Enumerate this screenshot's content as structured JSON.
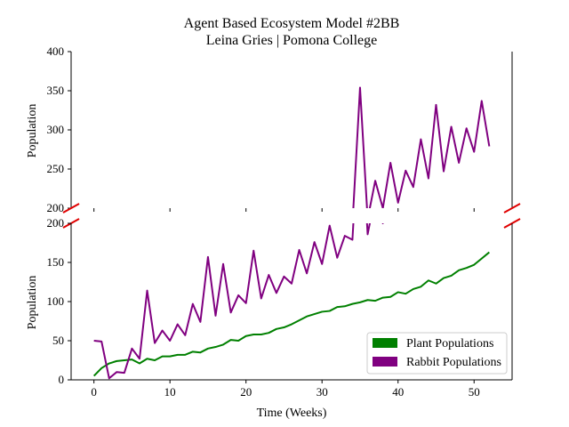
{
  "chart_data": {
    "type": "line",
    "title": "Agent Based Ecosystem Model #2BB",
    "subtitle": "Leina Gries | Pomona College",
    "xlabel": "Time (Weeks)",
    "ylabel": "Population",
    "xlim": [
      -3,
      55
    ],
    "x_ticks": [
      0,
      10,
      20,
      30,
      40,
      50
    ],
    "broken_y_axis": true,
    "upper_panel": {
      "ylim": [
        200,
        400
      ],
      "y_ticks": [
        200,
        250,
        300,
        350,
        400
      ]
    },
    "lower_panel": {
      "ylim": [
        0,
        200
      ],
      "y_ticks": [
        0,
        50,
        100,
        150,
        200
      ]
    },
    "x": [
      0,
      1,
      2,
      3,
      4,
      5,
      6,
      7,
      8,
      9,
      10,
      11,
      12,
      13,
      14,
      15,
      16,
      17,
      18,
      19,
      20,
      21,
      22,
      23,
      24,
      25,
      26,
      27,
      28,
      29,
      30,
      31,
      32,
      33,
      34,
      35,
      36,
      37,
      38,
      39,
      40,
      41,
      42,
      43,
      44,
      45,
      46,
      47,
      48,
      49,
      50,
      51,
      52
    ],
    "series": [
      {
        "name": "Plant Populations",
        "color": "#008000",
        "values": [
          5,
          15,
          21,
          24,
          25,
          26,
          21,
          27,
          25,
          30,
          30,
          32,
          32,
          36,
          35,
          40,
          42,
          45,
          51,
          50,
          56,
          58,
          58,
          60,
          65,
          67,
          71,
          76,
          81,
          84,
          87,
          88,
          93,
          94,
          97,
          99,
          102,
          101,
          105,
          106,
          112,
          110,
          116,
          119,
          127,
          123,
          130,
          133,
          140,
          143,
          147,
          155,
          163
        ]
      },
      {
        "name": "Rabbit Populations",
        "color": "#800080",
        "values": [
          50,
          49,
          2,
          10,
          9,
          40,
          27,
          114,
          47,
          63,
          50,
          71,
          57,
          97,
          74,
          157,
          82,
          148,
          86,
          108,
          98,
          165,
          104,
          134,
          111,
          132,
          123,
          166,
          136,
          176,
          148,
          197,
          156,
          184,
          179,
          354,
          186,
          235,
          200,
          258,
          207,
          248,
          227,
          288,
          238,
          332,
          247,
          304,
          258,
          302,
          272,
          337,
          279
        ]
      }
    ],
    "legend": {
      "placement": "lower-right",
      "entries": [
        "Plant Populations",
        "Rabbit Populations"
      ]
    }
  }
}
